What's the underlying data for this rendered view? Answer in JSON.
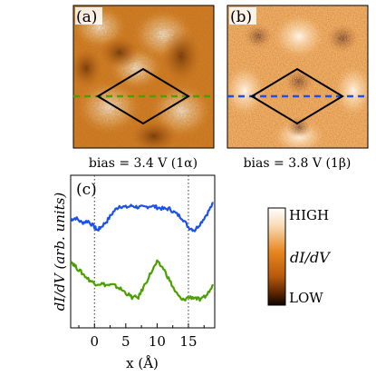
{
  "panels": {
    "a": {
      "label": "(a)",
      "caption": "bias = 3.4 V (1α)"
    },
    "b": {
      "label": "(b)",
      "caption": "bias = 3.8 V (1β)"
    },
    "c": {
      "label": "(c)"
    }
  },
  "colorbar": {
    "high_label": "HIGH",
    "low_label": "LOW",
    "quantity_label": "dI/dV"
  },
  "colors": {
    "green_trace": "#4aa000",
    "blue_trace": "#1a4ff0",
    "map_orange": "#d77a1e",
    "map_dark": "#1a0a00",
    "map_light": "#fff6ea"
  },
  "chart_data": {
    "type": "line",
    "xlabel": "x (Å)",
    "ylabel": "dI/dV  (arb. units)",
    "xticks": [
      "0",
      "5",
      "10",
      "15"
    ],
    "xlim": [
      -3.8,
      19.2
    ],
    "ylim": [
      0,
      1
    ],
    "y_tick_labels": false,
    "dotted_vlines_at_x": [
      0,
      15
    ],
    "series": [
      {
        "color": "#1a4ff0",
        "x": [
          -3.8,
          -3,
          -2,
          -1,
          0,
          0.5,
          1,
          2,
          3,
          4,
          5,
          6,
          7,
          8,
          9,
          10,
          11,
          12,
          13,
          14,
          15,
          16,
          17,
          18,
          19
        ],
        "y": [
          0.71,
          0.72,
          0.69,
          0.7,
          0.66,
          0.64,
          0.66,
          0.7,
          0.76,
          0.8,
          0.79,
          0.8,
          0.79,
          0.79,
          0.8,
          0.79,
          0.78,
          0.78,
          0.75,
          0.72,
          0.66,
          0.64,
          0.69,
          0.75,
          0.82
        ]
      },
      {
        "color": "#4aa000",
        "x": [
          -3.8,
          -3,
          -2,
          -1,
          0,
          1,
          2,
          3,
          4,
          5,
          6,
          7,
          8,
          9,
          10,
          11,
          12,
          13,
          14,
          15,
          16,
          17,
          18,
          19
        ],
        "y": [
          0.44,
          0.4,
          0.36,
          0.32,
          0.29,
          0.29,
          0.28,
          0.28,
          0.26,
          0.23,
          0.2,
          0.2,
          0.28,
          0.36,
          0.43,
          0.39,
          0.31,
          0.23,
          0.18,
          0.2,
          0.2,
          0.18,
          0.22,
          0.28
        ]
      }
    ]
  }
}
